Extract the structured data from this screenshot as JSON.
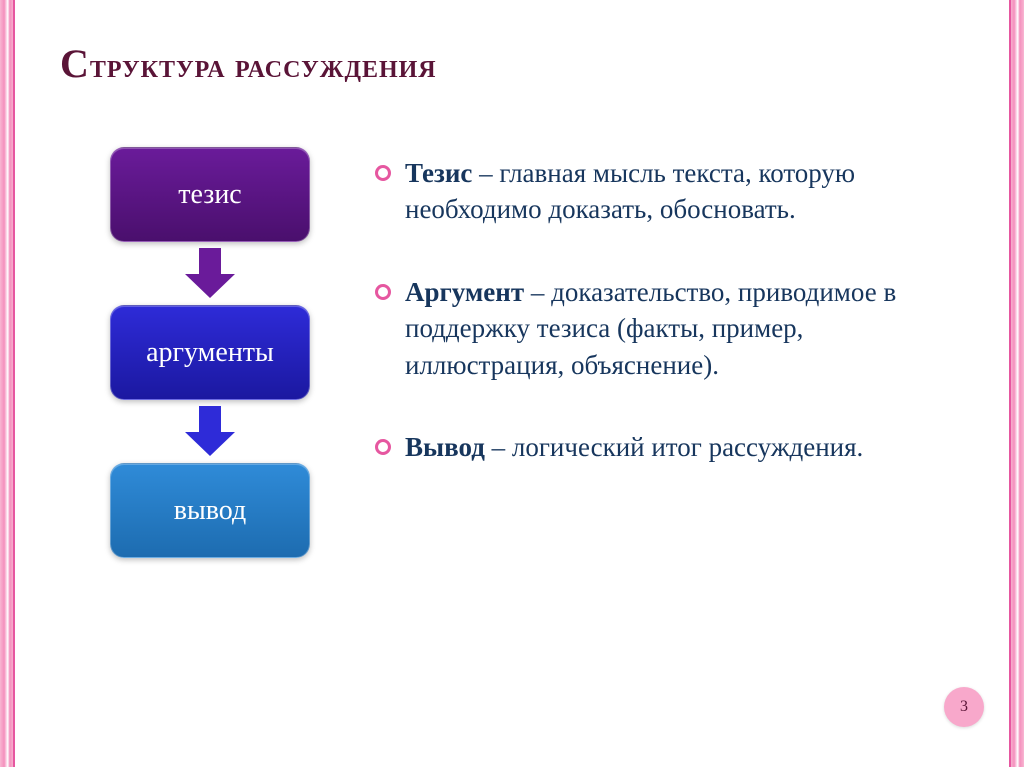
{
  "title": "Структура рассуждения",
  "flow": {
    "boxes": [
      {
        "label": "тезис",
        "bg_top": "#6a1b9a",
        "bg_bot": "#4a0f6d"
      },
      {
        "label": "аргументы",
        "bg_top": "#2e2bd8",
        "bg_bot": "#1b18a0"
      },
      {
        "label": "вывод",
        "bg_top": "#2f8bd8",
        "bg_bot": "#1d6cb0"
      }
    ],
    "arrows": [
      {
        "fill": "#6a1b9a"
      },
      {
        "fill": "#2e2bd8"
      }
    ]
  },
  "definitions": [
    {
      "term": "Тезис",
      "text": " – главная мысль текста, которую необходимо доказать, обосновать."
    },
    {
      "term": "Аргумент",
      "text": " – доказательство, приводимое в поддержку тезиса (факты, пример, иллюстрация, объяснение)."
    },
    {
      "term": "Вывод",
      "text": " – логический итог рассуждения."
    }
  ],
  "colors": {
    "title": "#5a1437",
    "body_text": "#17365d",
    "bullet_ring": "#e657a0",
    "border_pink": "#f8a8cb",
    "background": "#ffffff"
  },
  "page_number": "3"
}
